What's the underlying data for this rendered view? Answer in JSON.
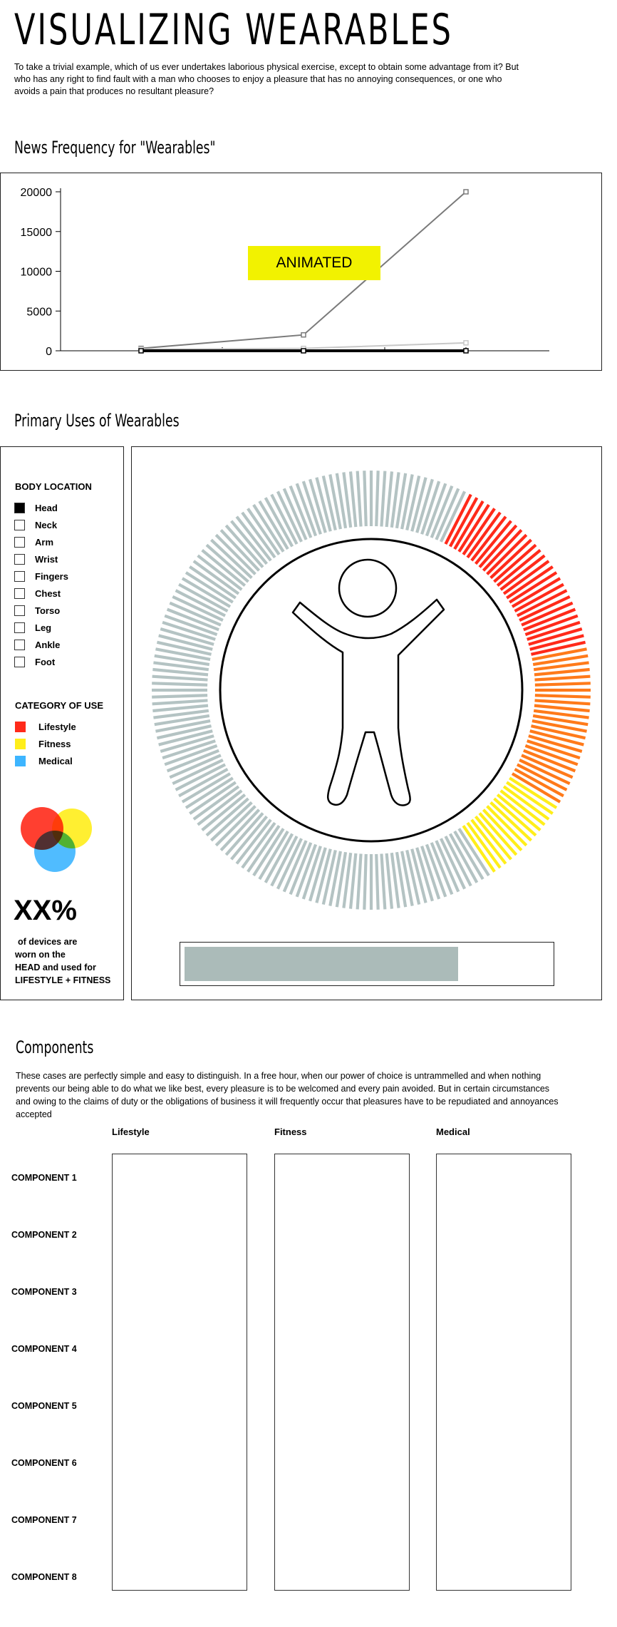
{
  "header": {
    "title": "VISUALIZING WEARABLES",
    "intro": "To take a trivial example, which of us ever undertakes laborious physical exercise, except to obtain some advantage from it? But who has any right to find fault with a man who chooses to enjoy a pleasure that has no annoying consequences, or one who avoids a pain that produces no resultant pleasure?"
  },
  "news": {
    "heading": "News Frequency for \"Wearables\"",
    "badge": "ANIMATED",
    "colors": {
      "badge": "#f2f200",
      "series_a": "#7a7a7a",
      "series_b": "#c8c8c8",
      "series_c": "#000000"
    }
  },
  "chart_data": {
    "type": "line",
    "title": "",
    "xlabel": "",
    "ylabel": "",
    "ylim": [
      0,
      20000
    ],
    "yticks": [
      0,
      5000,
      10000,
      15000,
      20000
    ],
    "x": [
      1,
      2,
      3
    ],
    "series": [
      {
        "values": [
          300,
          2000,
          20000
        ]
      },
      {
        "values": [
          200,
          300,
          1000
        ]
      },
      {
        "values": [
          0,
          0,
          0
        ]
      }
    ]
  },
  "uses": {
    "heading": "Primary Uses of Wearables",
    "body_location_title": "BODY LOCATION",
    "body_locations": [
      {
        "label": "Head",
        "checked": true
      },
      {
        "label": "Neck",
        "checked": false
      },
      {
        "label": "Arm",
        "checked": false
      },
      {
        "label": "Wrist",
        "checked": false
      },
      {
        "label": "Fingers",
        "checked": false
      },
      {
        "label": "Chest",
        "checked": false
      },
      {
        "label": "Torso",
        "checked": false
      },
      {
        "label": "Leg",
        "checked": false
      },
      {
        "label": "Ankle",
        "checked": false
      },
      {
        "label": "Foot",
        "checked": false
      }
    ],
    "category_title": "CATEGORY OF USE",
    "categories": [
      {
        "label": "Lifestyle",
        "color": "#ff2a1a"
      },
      {
        "label": "Fitness",
        "color": "#ffee1a"
      },
      {
        "label": "Medical",
        "color": "#3db5ff"
      }
    ],
    "stat_value": "XX%",
    "stat_line1": "of  devices are",
    "stat_line2": "worn on the",
    "stat_line3": "HEAD  and used for",
    "stat_line4": "LIFESTYLE + FITNESS",
    "ring_colors": {
      "neutral": "#b4c3c3",
      "lifestyle": "#ff2a1a",
      "orange": "#ff7a1a",
      "fitness": "#ffee1a"
    },
    "progress_fraction": 0.75,
    "progress_color": "#abbbb9"
  },
  "components": {
    "heading": "Components",
    "description": "These cases are perfectly simple and easy to distinguish. In a free hour, when our power of choice is untrammelled and when nothing prevents our being able to do what we like best, every pleasure is to be welcomed and every pain avoided. But in certain circumstances and owing to the claims of duty or the obligations of business it will frequently occur that pleasures have to be repudiated and annoyances accepted",
    "columns": [
      "Lifestyle",
      "Fitness",
      "Medical"
    ],
    "rows": [
      "COMPONENT 1",
      "COMPONENT 2",
      "COMPONENT 3",
      "COMPONENT 4",
      "COMPONENT 5",
      "COMPONENT 6",
      "COMPONENT 7",
      "COMPONENT 8"
    ]
  }
}
